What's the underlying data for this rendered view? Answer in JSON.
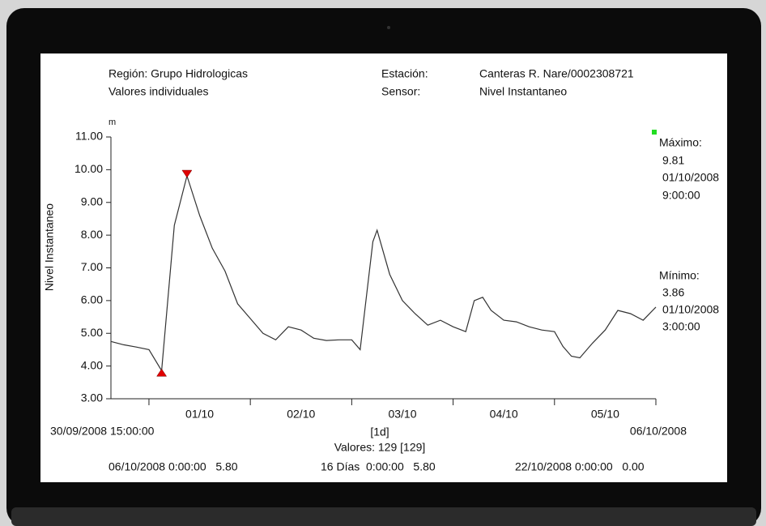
{
  "chart_data": {
    "type": "line",
    "header": {
      "region": "Región: Grupo Hidrologicas",
      "mode": "Valores individuales",
      "station_label": "Estación:",
      "station": "Canteras R. Nare/0002308721",
      "sensor_label": "Sensor:",
      "sensor": "Nivel Instantaneo"
    },
    "y_label": "Nivel Instantaneo",
    "y_unit": "m",
    "x": [
      "2008-09-30T15:00",
      "2008-09-30T18:00",
      "2008-09-30T21:00",
      "2008-10-01T00:00",
      "2008-10-01T03:00",
      "2008-10-01T06:00",
      "2008-10-01T09:00",
      "2008-10-01T12:00",
      "2008-10-01T15:00",
      "2008-10-01T18:00",
      "2008-10-01T21:00",
      "2008-10-02T00:00",
      "2008-10-02T03:00",
      "2008-10-02T06:00",
      "2008-10-02T09:00",
      "2008-10-02T12:00",
      "2008-10-02T15:00",
      "2008-10-02T18:00",
      "2008-10-02T21:00",
      "2008-10-03T00:00",
      "2008-10-03T02:00",
      "2008-10-03T05:00",
      "2008-10-03T06:00",
      "2008-10-03T09:00",
      "2008-10-03T12:00",
      "2008-10-03T15:00",
      "2008-10-03T18:00",
      "2008-10-03T21:00",
      "2008-10-04T00:00",
      "2008-10-04T03:00",
      "2008-10-04T05:00",
      "2008-10-04T07:00",
      "2008-10-04T09:00",
      "2008-10-04T12:00",
      "2008-10-04T15:00",
      "2008-10-04T18:00",
      "2008-10-04T21:00",
      "2008-10-05T00:00",
      "2008-10-05T02:00",
      "2008-10-05T04:00",
      "2008-10-05T06:00",
      "2008-10-05T09:00",
      "2008-10-05T12:00",
      "2008-10-05T15:00",
      "2008-10-05T18:00",
      "2008-10-05T21:00",
      "2008-10-06T00:00"
    ],
    "series": [
      {
        "name": "Nivel Instantaneo",
        "color": "#333333",
        "values": [
          4.75,
          4.65,
          4.58,
          4.5,
          3.86,
          8.3,
          9.81,
          8.6,
          7.6,
          6.9,
          5.9,
          5.45,
          5.0,
          4.8,
          5.2,
          5.1,
          4.85,
          4.78,
          4.8,
          4.8,
          4.5,
          7.8,
          8.15,
          6.8,
          6.0,
          5.6,
          5.25,
          5.4,
          5.2,
          5.05,
          6.0,
          6.1,
          5.7,
          5.4,
          5.35,
          5.2,
          5.1,
          5.05,
          4.6,
          4.3,
          4.25,
          4.7,
          5.1,
          5.7,
          5.6,
          5.4,
          5.8
        ]
      }
    ],
    "xlim": [
      "2008-09-30T15:00",
      "2008-10-06T00:00"
    ],
    "xticks": [
      {
        "value": "2008-10-01T00:00",
        "label": "01/10"
      },
      {
        "value": "2008-10-02T00:00",
        "label": "02/10"
      },
      {
        "value": "2008-10-03T00:00",
        "label": "03/10"
      },
      {
        "value": "2008-10-04T00:00",
        "label": "04/10"
      },
      {
        "value": "2008-10-05T00:00",
        "label": "05/10"
      }
    ],
    "ylim": [
      3,
      11
    ],
    "yticks": [
      {
        "value": 3,
        "label": "3.00"
      },
      {
        "value": 4,
        "label": "4.00"
      },
      {
        "value": 5,
        "label": "5.00"
      },
      {
        "value": 6,
        "label": "6.00"
      },
      {
        "value": 7,
        "label": "7.00"
      },
      {
        "value": 8,
        "label": "8.00"
      },
      {
        "value": 9,
        "label": "9.00"
      },
      {
        "value": 10,
        "label": "10.00"
      },
      {
        "value": 11,
        "label": "11.00"
      }
    ],
    "marker_color": "#e00000",
    "maximum": {
      "label": "Máximo:",
      "value": 9.81,
      "date": "01/10/2008",
      "time": "9:00:00",
      "index": 6
    },
    "minimum": {
      "label": "Mínimo:",
      "value": 3.86,
      "date": "01/10/2008",
      "time": "3:00:00",
      "index": 4
    },
    "footer": {
      "start": "30/09/2008 15:00:00",
      "end": "06/10/2008",
      "interval": "[1d]",
      "count": "Valores: 129 [129]",
      "left": "06/10/2008 0:00:00   5.80",
      "middle": "16 Días  0:00:00   5.80",
      "right": "22/10/2008 0:00:00   0.00"
    }
  }
}
